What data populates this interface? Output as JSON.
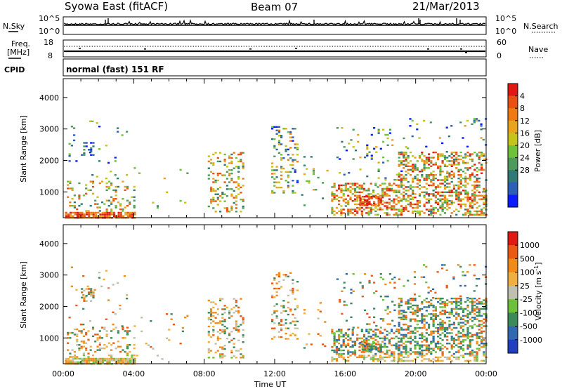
{
  "header": {
    "station": "Syowa East (fitACF)",
    "beam": "Beam 07",
    "date": "21/Mar/2013"
  },
  "nsky_panel": {
    "left_label": "N.Sky",
    "left_ticks": [
      "10^5",
      "10^0"
    ],
    "right_ticks": [
      "10^5",
      "10^0"
    ],
    "right_label": "N.Search"
  },
  "freq_panel": {
    "left_label_top": "Freq.",
    "left_label_bottom": "[MHz]",
    "left_ticks": [
      "18",
      "8"
    ],
    "right_ticks": [
      "60",
      "0"
    ],
    "right_label": "Nave"
  },
  "cpid_panel": {
    "label": "CPID",
    "mode": "normal (fast) 151 RF"
  },
  "chart_data": [
    {
      "type": "heatmap",
      "title": "",
      "xlabel": "",
      "ylabel": "Slant Range [km]",
      "x_ticks": [
        "00:00",
        "04:00",
        "08:00",
        "12:00",
        "16:00",
        "20:00",
        "00:00"
      ],
      "y_ticks": [
        "1000",
        "2000",
        "3000",
        "4000"
      ],
      "xlim_hours": [
        0,
        24
      ],
      "ylim_km": [
        180,
        4600
      ],
      "colorbar": {
        "label": "Power [dB]",
        "ticks": [
          "4",
          "8",
          "12",
          "16",
          "20",
          "24",
          "28"
        ],
        "colors": [
          "#0b1cff",
          "#2c5fb8",
          "#2f7a76",
          "#4e9a5b",
          "#6ec23a",
          "#c6c41a",
          "#e8a41c",
          "#f07a12",
          "#e85014",
          "#e01a12"
        ]
      }
    },
    {
      "type": "heatmap",
      "title": "",
      "xlabel": "Time UT",
      "ylabel": "Slant Range [km]",
      "x_ticks": [
        "00:00",
        "04:00",
        "08:00",
        "12:00",
        "16:00",
        "20:00",
        "00:00"
      ],
      "y_ticks": [
        "1000",
        "2000",
        "3000",
        "4000"
      ],
      "xlim_hours": [
        0,
        24
      ],
      "ylim_km": [
        180,
        4600
      ],
      "colorbar": {
        "label": "Velocity [m s",
        "label_sup": "-1",
        "label_end": "]",
        "ticks": [
          "1000",
          "500",
          "100",
          "25",
          "-25",
          "-100",
          "-500",
          "-1000"
        ],
        "colors": [
          "#1f3fbf",
          "#2f6ab0",
          "#3a8a5a",
          "#6cc03a",
          "#c0c0b0",
          "#f0b040",
          "#f08a18",
          "#ea5a14",
          "#e01a12"
        ]
      }
    }
  ]
}
